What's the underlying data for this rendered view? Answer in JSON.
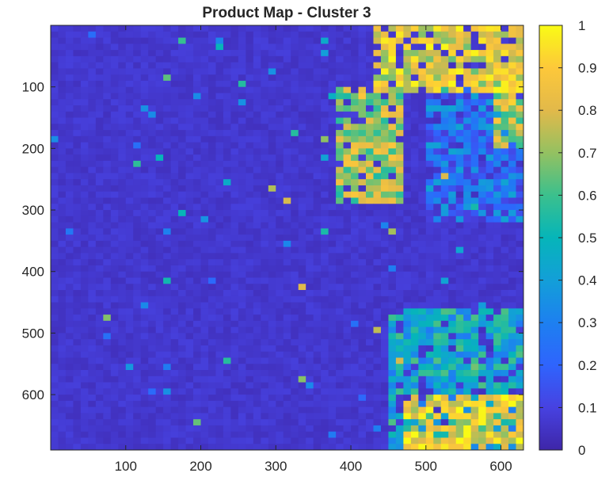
{
  "chart_data": {
    "type": "heatmap",
    "title": "Product Map - Cluster 3",
    "xlabel": "",
    "ylabel": "",
    "colormap": "parula",
    "x_ticks": [
      100,
      200,
      300,
      400,
      500,
      600
    ],
    "y_ticks": [
      100,
      200,
      300,
      400,
      500,
      600
    ],
    "xlim": [
      0,
      630
    ],
    "ylim": [
      0,
      690
    ],
    "y_direction": "reversed",
    "color_range": [
      0,
      1
    ],
    "colorbar_ticks": [
      "0",
      "0.1",
      "0.2",
      "0.3",
      "0.4",
      "0.5",
      "0.6",
      "0.7",
      "0.8",
      "0.9",
      "1"
    ],
    "grid": false,
    "background_value": 0.04,
    "regions": [
      {
        "name": "top-right high region",
        "x_range": [
          430,
          630
        ],
        "y_range": [
          0,
          110
        ],
        "value": 0.82
      },
      {
        "name": "right edge high strip",
        "x_range": [
          590,
          630
        ],
        "y_range": [
          100,
          200
        ],
        "value": 0.75
      },
      {
        "name": "central tongue",
        "x_range": [
          380,
          470
        ],
        "y_range": [
          100,
          290
        ],
        "value": 0.72
      },
      {
        "name": "right arc",
        "x_range": [
          500,
          630
        ],
        "y_range": [
          100,
          320
        ],
        "value": 0.25
      },
      {
        "name": "bottom-right mixed region",
        "x_range": [
          450,
          630
        ],
        "y_range": [
          460,
          690
        ],
        "value": 0.45
      },
      {
        "name": "bottom-right hot corner",
        "x_range": [
          470,
          630
        ],
        "y_range": [
          600,
          690
        ],
        "value": 0.85
      }
    ]
  }
}
